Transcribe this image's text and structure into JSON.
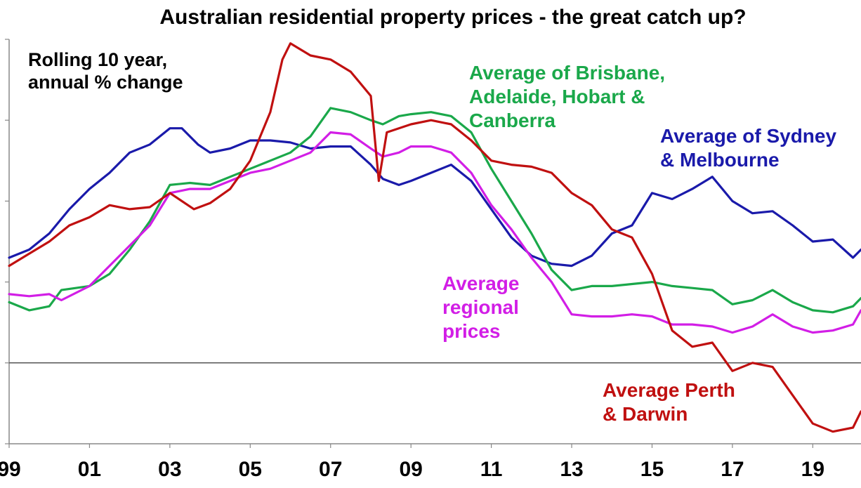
{
  "chart_data": {
    "type": "line",
    "title": "Australian residential property prices - the great catch up?",
    "ylabel_annotation": [
      "Rolling 10 year,",
      "annual % change"
    ],
    "x_ticks": [
      "99",
      "01",
      "03",
      "05",
      "07",
      "09",
      "11",
      "13",
      "15",
      "17",
      "19"
    ],
    "x_tick_values": [
      1999,
      2001,
      2003,
      2005,
      2007,
      2009,
      2011,
      2013,
      2015,
      2017,
      2019
    ],
    "xlim": [
      1999,
      2020.2
    ],
    "ylim": [
      -2,
      8
    ],
    "y_gridlines": [
      -2,
      0,
      2,
      4,
      6,
      8
    ],
    "zero_line": 0,
    "y_tick_labels_visible": false,
    "series": [
      {
        "label_lines": [
          "Average of Sydney",
          "& Melbourne"
        ],
        "color": "#1a1aaa",
        "points": [
          [
            1999,
            2.6
          ],
          [
            1999.5,
            2.8
          ],
          [
            2000,
            3.2
          ],
          [
            2000.5,
            3.8
          ],
          [
            2001,
            4.3
          ],
          [
            2001.5,
            4.7
          ],
          [
            2002,
            5.2
          ],
          [
            2002.5,
            5.4
          ],
          [
            2003,
            5.8
          ],
          [
            2003.3,
            5.8
          ],
          [
            2003.7,
            5.4
          ],
          [
            2004,
            5.2
          ],
          [
            2004.5,
            5.3
          ],
          [
            2005,
            5.5
          ],
          [
            2005.5,
            5.5
          ],
          [
            2006,
            5.45
          ],
          [
            2006.5,
            5.3
          ],
          [
            2007,
            5.35
          ],
          [
            2007.5,
            5.35
          ],
          [
            2008,
            4.9
          ],
          [
            2008.3,
            4.55
          ],
          [
            2008.7,
            4.4
          ],
          [
            2009,
            4.5
          ],
          [
            2009.5,
            4.7
          ],
          [
            2010,
            4.9
          ],
          [
            2010.5,
            4.5
          ],
          [
            2011,
            3.8
          ],
          [
            2011.5,
            3.1
          ],
          [
            2012,
            2.65
          ],
          [
            2012.5,
            2.45
          ],
          [
            2013,
            2.4
          ],
          [
            2013.5,
            2.65
          ],
          [
            2014,
            3.2
          ],
          [
            2014.5,
            3.4
          ],
          [
            2015,
            4.2
          ],
          [
            2015.5,
            4.05
          ],
          [
            2016,
            4.3
          ],
          [
            2016.5,
            4.6
          ],
          [
            2017,
            4.0
          ],
          [
            2017.5,
            3.7
          ],
          [
            2018,
            3.75
          ],
          [
            2018.5,
            3.4
          ],
          [
            2019,
            3.0
          ],
          [
            2019.5,
            3.05
          ],
          [
            2020,
            2.6
          ],
          [
            2020.2,
            2.8
          ]
        ]
      },
      {
        "label_lines": [
          "Average of Brisbane,",
          "Adelaide, Hobart &",
          "Canberra"
        ],
        "color": "#1aa84a",
        "points": [
          [
            1999,
            1.5
          ],
          [
            1999.5,
            1.3
          ],
          [
            2000,
            1.4
          ],
          [
            2000.3,
            1.8
          ],
          [
            2001,
            1.9
          ],
          [
            2001.5,
            2.2
          ],
          [
            2002,
            2.8
          ],
          [
            2002.5,
            3.5
          ],
          [
            2003,
            4.4
          ],
          [
            2003.5,
            4.45
          ],
          [
            2004,
            4.4
          ],
          [
            2004.5,
            4.6
          ],
          [
            2005,
            4.8
          ],
          [
            2005.5,
            5.0
          ],
          [
            2006,
            5.2
          ],
          [
            2006.5,
            5.6
          ],
          [
            2007,
            6.3
          ],
          [
            2007.5,
            6.2
          ],
          [
            2008,
            6.0
          ],
          [
            2008.3,
            5.9
          ],
          [
            2008.7,
            6.1
          ],
          [
            2009,
            6.15
          ],
          [
            2009.5,
            6.2
          ],
          [
            2010,
            6.1
          ],
          [
            2010.5,
            5.7
          ],
          [
            2011,
            4.8
          ],
          [
            2011.5,
            4.0
          ],
          [
            2012,
            3.2
          ],
          [
            2012.5,
            2.3
          ],
          [
            2013,
            1.8
          ],
          [
            2013.5,
            1.9
          ],
          [
            2014,
            1.9
          ],
          [
            2014.5,
            1.95
          ],
          [
            2015,
            2.0
          ],
          [
            2015.5,
            1.9
          ],
          [
            2016,
            1.85
          ],
          [
            2016.5,
            1.8
          ],
          [
            2017,
            1.45
          ],
          [
            2017.5,
            1.55
          ],
          [
            2018,
            1.8
          ],
          [
            2018.5,
            1.5
          ],
          [
            2019,
            1.3
          ],
          [
            2019.5,
            1.25
          ],
          [
            2020,
            1.4
          ],
          [
            2020.2,
            1.6
          ]
        ]
      },
      {
        "label_lines": [
          "Average",
          "regional",
          "prices"
        ],
        "color": "#d21ee6",
        "points": [
          [
            1999,
            1.7
          ],
          [
            1999.5,
            1.65
          ],
          [
            2000,
            1.7
          ],
          [
            2000.3,
            1.55
          ],
          [
            2001,
            1.9
          ],
          [
            2001.5,
            2.4
          ],
          [
            2002,
            2.9
          ],
          [
            2002.5,
            3.4
          ],
          [
            2003,
            4.2
          ],
          [
            2003.5,
            4.3
          ],
          [
            2004,
            4.3
          ],
          [
            2004.5,
            4.5
          ],
          [
            2005,
            4.7
          ],
          [
            2005.5,
            4.8
          ],
          [
            2006,
            5.0
          ],
          [
            2006.5,
            5.2
          ],
          [
            2007,
            5.7
          ],
          [
            2007.5,
            5.65
          ],
          [
            2008,
            5.3
          ],
          [
            2008.3,
            5.1
          ],
          [
            2008.7,
            5.2
          ],
          [
            2009,
            5.35
          ],
          [
            2009.5,
            5.35
          ],
          [
            2010,
            5.2
          ],
          [
            2010.5,
            4.7
          ],
          [
            2011,
            3.9
          ],
          [
            2011.5,
            3.3
          ],
          [
            2012,
            2.6
          ],
          [
            2012.5,
            2.0
          ],
          [
            2013,
            1.2
          ],
          [
            2013.5,
            1.15
          ],
          [
            2014,
            1.15
          ],
          [
            2014.5,
            1.2
          ],
          [
            2015,
            1.15
          ],
          [
            2015.5,
            0.95
          ],
          [
            2016,
            0.95
          ],
          [
            2016.5,
            0.9
          ],
          [
            2017,
            0.75
          ],
          [
            2017.5,
            0.9
          ],
          [
            2018,
            1.2
          ],
          [
            2018.5,
            0.9
          ],
          [
            2019,
            0.75
          ],
          [
            2019.5,
            0.8
          ],
          [
            2020,
            0.95
          ],
          [
            2020.2,
            1.3
          ]
        ]
      },
      {
        "label_lines": [
          "Average Perth",
          "& Darwin"
        ],
        "color": "#c01010",
        "points": [
          [
            1999,
            2.4
          ],
          [
            1999.5,
            2.7
          ],
          [
            2000,
            3.0
          ],
          [
            2000.5,
            3.4
          ],
          [
            2001,
            3.6
          ],
          [
            2001.5,
            3.9
          ],
          [
            2002,
            3.8
          ],
          [
            2002.5,
            3.85
          ],
          [
            2003,
            4.2
          ],
          [
            2003.6,
            3.8
          ],
          [
            2004,
            3.95
          ],
          [
            2004.5,
            4.3
          ],
          [
            2005,
            5.0
          ],
          [
            2005.5,
            6.2
          ],
          [
            2005.8,
            7.5
          ],
          [
            2006,
            7.9
          ],
          [
            2006.5,
            7.6
          ],
          [
            2007,
            7.5
          ],
          [
            2007.5,
            7.2
          ],
          [
            2008,
            6.6
          ],
          [
            2008.2,
            4.5
          ],
          [
            2008.4,
            5.7
          ],
          [
            2009,
            5.9
          ],
          [
            2009.5,
            6.0
          ],
          [
            2010,
            5.9
          ],
          [
            2010.5,
            5.5
          ],
          [
            2011,
            5.0
          ],
          [
            2011.5,
            4.9
          ],
          [
            2012,
            4.85
          ],
          [
            2012.5,
            4.7
          ],
          [
            2013,
            4.2
          ],
          [
            2013.5,
            3.9
          ],
          [
            2014,
            3.3
          ],
          [
            2014.5,
            3.1
          ],
          [
            2015,
            2.2
          ],
          [
            2015.5,
            0.8
          ],
          [
            2016,
            0.4
          ],
          [
            2016.5,
            0.5
          ],
          [
            2017,
            -0.2
          ],
          [
            2017.5,
            0.0
          ],
          [
            2018,
            -0.1
          ],
          [
            2018.5,
            -0.8
          ],
          [
            2019,
            -1.5
          ],
          [
            2019.5,
            -1.7
          ],
          [
            2020,
            -1.6
          ],
          [
            2020.2,
            -1.2
          ]
        ]
      }
    ]
  }
}
